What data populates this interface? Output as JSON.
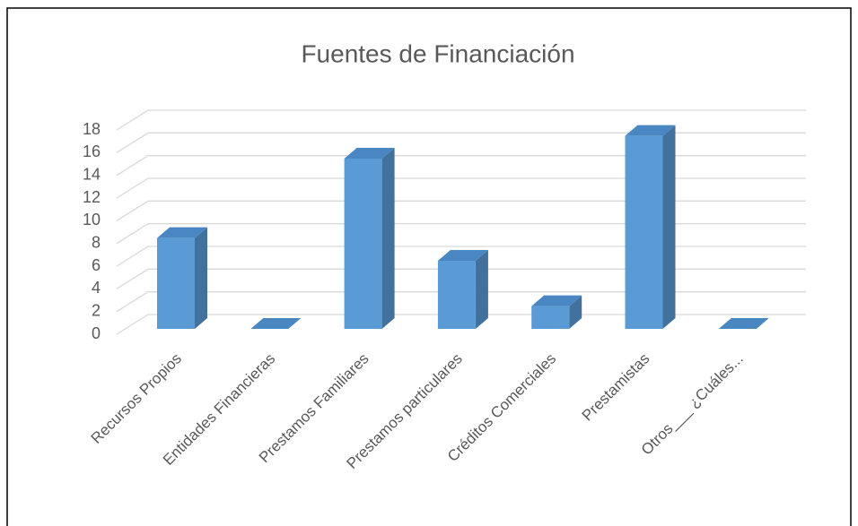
{
  "chart_data": {
    "type": "bar3d",
    "title": "Fuentes de Financiación",
    "categories": [
      "Recursos Propios",
      "Entidades Financieras",
      "Prestamos Familiares",
      "Prestamos particulares",
      "Créditos Comerciales",
      "Prestamistas",
      "Otros___ ¿Cuáles..."
    ],
    "values": [
      8,
      0,
      15,
      6,
      2,
      17,
      0
    ],
    "color": "#5b9bd5",
    "ylim": [
      0,
      18
    ],
    "yticks": [
      0,
      2,
      4,
      6,
      8,
      10,
      12,
      14,
      16,
      18
    ],
    "grid": true
  }
}
